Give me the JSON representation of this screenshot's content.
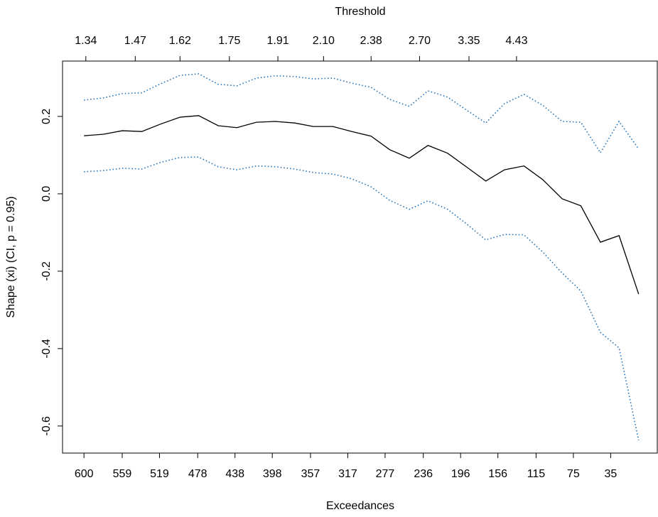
{
  "chart_data": {
    "type": "line",
    "x_label": "Exceedances",
    "y_label": "Shape (xi) (CI, p = 0.95)",
    "x2_label": "Threshold",
    "x": [
      600,
      579,
      559,
      538,
      518,
      497,
      477,
      456,
      436,
      415,
      395,
      374,
      354,
      333,
      313,
      292,
      272,
      251,
      231,
      210,
      190,
      169,
      149,
      128,
      108,
      87,
      67,
      46,
      26,
      5
    ],
    "series": [
      {
        "color": "#000000",
        "line_style": "solid",
        "values": [
          0.15,
          0.154,
          0.163,
          0.161,
          0.18,
          0.198,
          0.202,
          0.176,
          0.171,
          0.185,
          0.187,
          0.183,
          0.174,
          0.174,
          0.161,
          0.149,
          0.114,
          0.092,
          0.125,
          0.105,
          0.07,
          0.033,
          0.062,
          0.072,
          0.037,
          -0.013,
          -0.031,
          -0.125,
          -0.108,
          -0.259
        ]
      },
      {
        "color": "#1f6fb5",
        "line_style": "dotted",
        "values": [
          0.242,
          0.248,
          0.259,
          0.261,
          0.284,
          0.306,
          0.31,
          0.283,
          0.279,
          0.299,
          0.305,
          0.303,
          0.297,
          0.299,
          0.286,
          0.275,
          0.244,
          0.226,
          0.266,
          0.25,
          0.217,
          0.183,
          0.233,
          0.257,
          0.229,
          0.187,
          0.185,
          0.106,
          0.187,
          0.116
        ]
      },
      {
        "color": "#1f6fb5",
        "line_style": "dotted",
        "values": [
          0.057,
          0.06,
          0.066,
          0.064,
          0.081,
          0.094,
          0.095,
          0.07,
          0.062,
          0.072,
          0.07,
          0.064,
          0.055,
          0.051,
          0.039,
          0.018,
          -0.017,
          -0.04,
          -0.018,
          -0.04,
          -0.077,
          -0.119,
          -0.105,
          -0.106,
          -0.15,
          -0.205,
          -0.251,
          -0.358,
          -0.398,
          -0.637
        ]
      }
    ],
    "xlim": [
      623,
      -15
    ],
    "ylim": [
      -0.67,
      0.343
    ],
    "xticks": [
      600,
      559,
      519,
      478,
      438,
      398,
      357,
      317,
      277,
      236,
      196,
      156,
      115,
      75,
      35
    ],
    "x2ticks": [
      {
        "value": 598,
        "label": "1.34"
      },
      {
        "value": 545,
        "label": "1.47"
      },
      {
        "value": 497,
        "label": "1.62"
      },
      {
        "value": 444,
        "label": "1.75"
      },
      {
        "value": 392,
        "label": "1.91"
      },
      {
        "value": 343,
        "label": "2.10"
      },
      {
        "value": 292,
        "label": "2.38"
      },
      {
        "value": 240,
        "label": "2.70"
      },
      {
        "value": 187,
        "label": "3.35"
      },
      {
        "value": 136,
        "label": "4.43"
      }
    ],
    "yticks": [
      0.2,
      {
        "value": 0,
        "label": "0.0"
      },
      -0.2,
      -0.4,
      -0.6
    ],
    "grid": false
  }
}
